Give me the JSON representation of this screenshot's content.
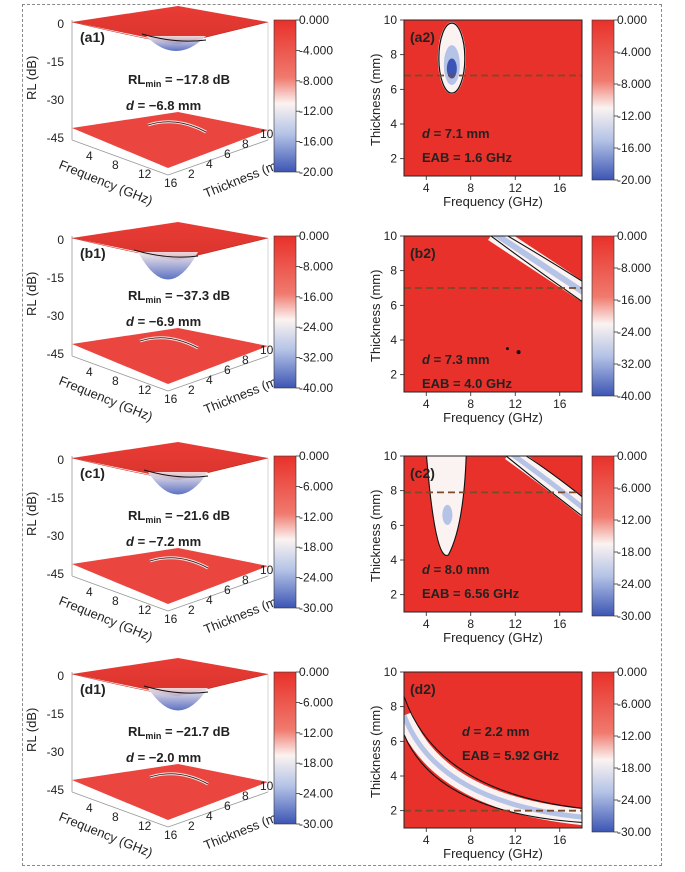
{
  "colors": {
    "red": "#e8312a",
    "red_light": "#f07a6e",
    "white": "#fbf3f1",
    "blue_light": "#b4c3e6",
    "blue": "#3c55b4",
    "contour": "#111111",
    "dashed_line": "#7a4a2a"
  },
  "labels": {
    "rl_axis": "RL (dB)",
    "frequency_axis_3d": "Frequency (GHz)",
    "thickness_axis_3d": "Thickness (mm)",
    "thickness_axis_2d": "Thickness (mm)",
    "frequency_axis_2d": "Frequency (GHz)",
    "rl_ticks": [
      "0",
      "-15",
      "-30",
      "-45"
    ],
    "freq_ticks_3d": [
      "4",
      "8",
      "12",
      "16"
    ],
    "thick_ticks_3d": [
      "2",
      "4",
      "6",
      "8",
      "10"
    ],
    "thick_ticks_2d": [
      "2",
      "4",
      "6",
      "8",
      "10"
    ],
    "freq_ticks_2d": [
      "4",
      "8",
      "12",
      "16"
    ]
  },
  "chart_data": [
    {
      "panel": "(a1)",
      "type": "surface3d",
      "annotation_rl": "RL",
      "annotation_sub": "min",
      "annotation_val": " = −17.8 dB",
      "annotation_d": "d",
      "annotation_dval": " = −6.8 mm",
      "colorbar_ticks": [
        "0.000",
        "-4.000",
        "-8.000",
        "-12.00",
        "-16.00",
        "-20.00"
      ]
    },
    {
      "panel": "(a2)",
      "type": "heatmap",
      "x": "Frequency (GHz)",
      "y": "Thickness (mm)",
      "xlim": [
        2,
        18
      ],
      "ylim": [
        1,
        10
      ],
      "dashed_line_thickness": 6.8,
      "annotation_d": "d",
      "annotation_dval": " = 7.1 mm",
      "annotation_eab": "EAB = 1.6 GHz",
      "colorbar_ticks": [
        "0.000",
        "-4.000",
        "-8.000",
        "-12.00",
        "-16.00",
        "-20.00"
      ]
    },
    {
      "panel": "(b1)",
      "type": "surface3d",
      "annotation_rl": "RL",
      "annotation_sub": "min",
      "annotation_val": " = −37.3 dB",
      "annotation_d": "d",
      "annotation_dval": " = −6.9 mm",
      "colorbar_ticks": [
        "0.000",
        "-8.000",
        "-16.00",
        "-24.00",
        "-32.00",
        "-40.00"
      ]
    },
    {
      "panel": "(b2)",
      "type": "heatmap",
      "x": "Frequency (GHz)",
      "y": "Thickness (mm)",
      "xlim": [
        2,
        18
      ],
      "ylim": [
        1,
        10
      ],
      "dashed_line_thickness": 7.0,
      "annotation_d": "d",
      "annotation_dval": " = 7.3 mm",
      "annotation_eab": "EAB = 4.0 GHz",
      "colorbar_ticks": [
        "0.000",
        "-8.000",
        "-16.00",
        "-24.00",
        "-32.00",
        "-40.00"
      ]
    },
    {
      "panel": "(c1)",
      "type": "surface3d",
      "annotation_rl": "RL",
      "annotation_sub": "min",
      "annotation_val": " = −21.6 dB",
      "annotation_d": "d",
      "annotation_dval": " = −7.2 mm",
      "colorbar_ticks": [
        "0.000",
        "-6.000",
        "-12.00",
        "-18.00",
        "-24.00",
        "-30.00"
      ]
    },
    {
      "panel": "(c2)",
      "type": "heatmap",
      "x": "Frequency (GHz)",
      "y": "Thickness (mm)",
      "xlim": [
        2,
        18
      ],
      "ylim": [
        1,
        10
      ],
      "dashed_line_thickness": 7.9,
      "annotation_d": "d",
      "annotation_dval": " = 8.0 mm",
      "annotation_eab": "EAB = 6.56 GHz",
      "colorbar_ticks": [
        "0.000",
        "-6.000",
        "-12.00",
        "-18.00",
        "-24.00",
        "-30.00"
      ]
    },
    {
      "panel": "(d1)",
      "type": "surface3d",
      "annotation_rl": "RL",
      "annotation_sub": "min",
      "annotation_val": " = −21.7 dB",
      "annotation_d": "d",
      "annotation_dval": " = −2.0 mm",
      "colorbar_ticks": [
        "0.000",
        "-6.000",
        "-12.00",
        "-18.00",
        "-24.00",
        "-30.00"
      ]
    },
    {
      "panel": "(d2)",
      "type": "heatmap",
      "x": "Frequency (GHz)",
      "y": "Thickness (mm)",
      "xlim": [
        2,
        18
      ],
      "ylim": [
        1,
        10
      ],
      "dashed_line_thickness": 2.0,
      "annotation_d": "d",
      "annotation_dval": " = 2.2 mm",
      "annotation_eab": "EAB = 5.92 GHz",
      "colorbar_ticks": [
        "0.000",
        "-6.000",
        "-12.00",
        "-18.00",
        "-24.00",
        "-30.00"
      ]
    }
  ]
}
